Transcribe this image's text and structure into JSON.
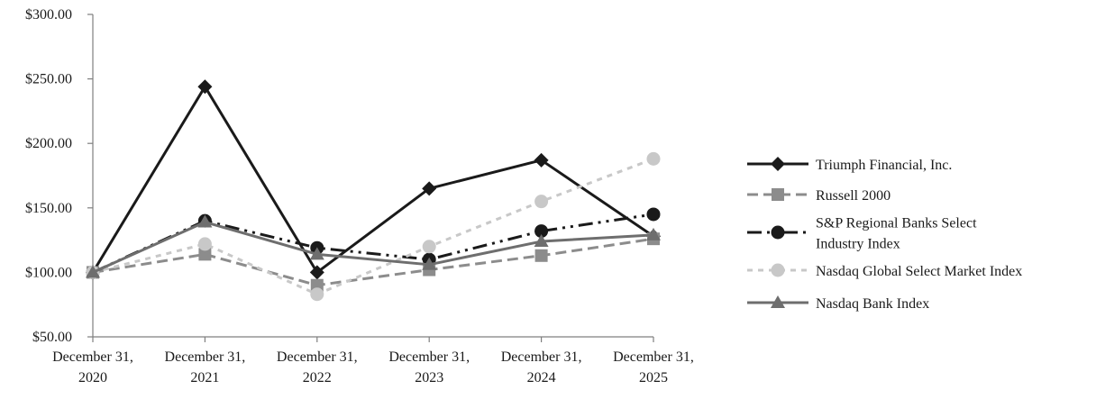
{
  "chart_data": {
    "type": "line",
    "title": "",
    "xlabel": "",
    "ylabel": "",
    "categories": [
      [
        "December 31,",
        "2020"
      ],
      [
        "December 31,",
        "2021"
      ],
      [
        "December 31,",
        "2022"
      ],
      [
        "December 31,",
        "2023"
      ],
      [
        "December 31,",
        "2024"
      ],
      [
        "December 31,",
        "2025"
      ]
    ],
    "y_ticks": [
      "$50.00",
      "$100.00",
      "$150.00",
      "$200.00",
      "$250.00",
      "$300.00"
    ],
    "ylim": [
      50,
      300
    ],
    "grid": false,
    "legend_position": "right",
    "series": [
      {
        "name": "Triumph Financial, Inc.",
        "legend_lines": [
          "Triumph Financial, Inc."
        ],
        "values": [
          100,
          244,
          100,
          165,
          187,
          128
        ],
        "color": "#1a1a1a",
        "dash": "solid",
        "marker": "diamond"
      },
      {
        "name": "Russell 2000",
        "legend_lines": [
          "Russell 2000"
        ],
        "values": [
          100,
          114,
          90,
          102,
          113,
          126
        ],
        "color": "#8c8c8c",
        "dash": "dashed",
        "marker": "square"
      },
      {
        "name": "S&P Regional Banks Select Industry Index",
        "legend_lines": [
          "S&P Regional Banks Select",
          "Industry Index"
        ],
        "values": [
          100,
          140,
          119,
          110,
          132,
          145
        ],
        "color": "#1a1a1a",
        "dash": "dash-dot",
        "marker": "circle"
      },
      {
        "name": "Nasdaq Global Select Market Index",
        "legend_lines": [
          "Nasdaq Global Select Market Index"
        ],
        "values": [
          100,
          122,
          83,
          120,
          155,
          188
        ],
        "color": "#c8c8c8",
        "dash": "dotted",
        "marker": "circle"
      },
      {
        "name": "Nasdaq Bank Index",
        "legend_lines": [
          "Nasdaq Bank Index"
        ],
        "values": [
          100,
          139,
          114,
          106,
          124,
          129
        ],
        "color": "#6e6e6e",
        "dash": "solid",
        "marker": "triangle"
      }
    ]
  }
}
